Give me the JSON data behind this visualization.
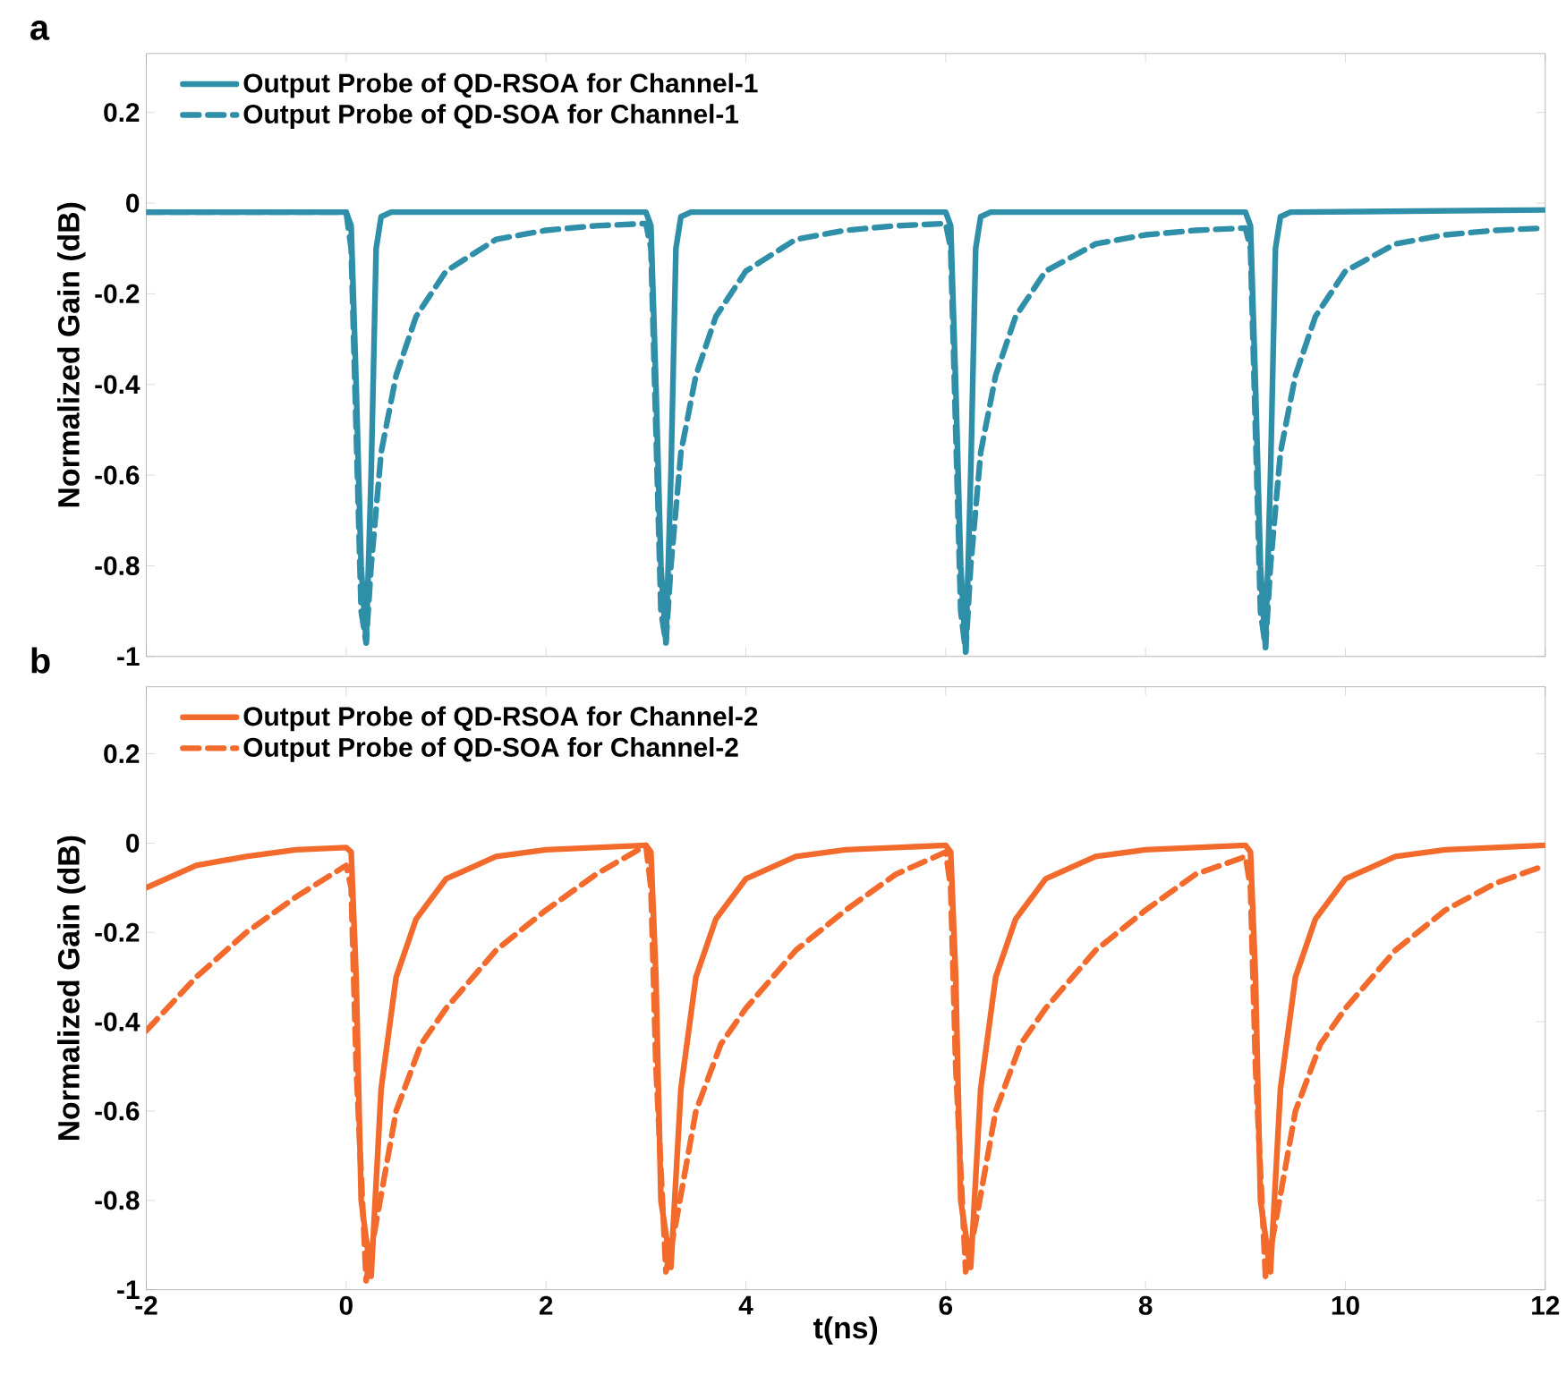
{
  "chart_data": [
    {
      "type": "line",
      "title": "a",
      "ylabel": "Normalized Gain (dB)",
      "xlim": [
        -2,
        12
      ],
      "ylim": [
        -1,
        0.33
      ],
      "xticks": [
        -2,
        0,
        2,
        4,
        6,
        8,
        10,
        12
      ],
      "yticks": [
        -1,
        -0.8,
        -0.6,
        -0.4,
        -0.2,
        0,
        0.2
      ],
      "tick_labels": "y",
      "legend": "top left",
      "series": [
        {
          "name": "Output Probe of QD-RSOA for Channel-1",
          "color": "#2f8fa9",
          "line_style": "solid",
          "x": [
            -2,
            0,
            0.05,
            0.1,
            0.15,
            0.2,
            0.25,
            0.3,
            0.35,
            0.45,
            3,
            3.05,
            3.1,
            3.15,
            3.2,
            3.25,
            3.3,
            3.35,
            3.45,
            6,
            6.05,
            6.1,
            6.15,
            6.2,
            6.25,
            6.3,
            6.35,
            6.45,
            9,
            9.05,
            9.1,
            9.15,
            9.2,
            9.25,
            9.3,
            9.35,
            9.45,
            12
          ],
          "values": [
            -0.02,
            -0.02,
            -0.05,
            -0.4,
            -0.8,
            -0.97,
            -0.6,
            -0.1,
            -0.03,
            -0.02,
            -0.02,
            -0.05,
            -0.4,
            -0.8,
            -0.97,
            -0.6,
            -0.1,
            -0.03,
            -0.02,
            -0.02,
            -0.05,
            -0.4,
            -0.8,
            -0.99,
            -0.6,
            -0.1,
            -0.03,
            -0.02,
            -0.02,
            -0.05,
            -0.4,
            -0.8,
            -0.98,
            -0.6,
            -0.1,
            -0.03,
            -0.02,
            -0.015
          ]
        },
        {
          "name": "Output Probe of QD-SOA for Channel-1",
          "color": "#2f8fa9",
          "line_style": "dashed",
          "x": [
            -2,
            0,
            0.05,
            0.1,
            0.15,
            0.2,
            0.25,
            0.35,
            0.5,
            0.7,
            1,
            1.5,
            2,
            2.5,
            3,
            3.05,
            3.1,
            3.15,
            3.2,
            3.25,
            3.35,
            3.5,
            3.7,
            4,
            4.5,
            5,
            5.5,
            6,
            6.05,
            6.1,
            6.15,
            6.2,
            6.25,
            6.35,
            6.5,
            6.7,
            7,
            7.5,
            8,
            8.5,
            9,
            9.05,
            9.1,
            9.15,
            9.2,
            9.25,
            9.35,
            9.5,
            9.7,
            10,
            10.5,
            11,
            11.5,
            12
          ],
          "values": [
            -0.02,
            -0.02,
            -0.1,
            -0.5,
            -0.9,
            -0.97,
            -0.8,
            -0.55,
            -0.38,
            -0.25,
            -0.15,
            -0.08,
            -0.06,
            -0.05,
            -0.045,
            -0.1,
            -0.5,
            -0.9,
            -0.97,
            -0.8,
            -0.55,
            -0.38,
            -0.25,
            -0.15,
            -0.08,
            -0.06,
            -0.05,
            -0.045,
            -0.1,
            -0.5,
            -0.9,
            -0.99,
            -0.8,
            -0.55,
            -0.38,
            -0.25,
            -0.15,
            -0.09,
            -0.07,
            -0.06,
            -0.055,
            -0.1,
            -0.5,
            -0.9,
            -0.98,
            -0.8,
            -0.55,
            -0.38,
            -0.25,
            -0.15,
            -0.09,
            -0.07,
            -0.06,
            -0.055
          ]
        }
      ]
    },
    {
      "type": "line",
      "title": "b",
      "xlabel": "t(ns)",
      "ylabel": "Normalized Gain (dB)",
      "xlim": [
        -2,
        12
      ],
      "ylim": [
        -1,
        0.35
      ],
      "xticks": [
        -2,
        0,
        2,
        4,
        6,
        8,
        10,
        12
      ],
      "yticks": [
        -1,
        -0.8,
        -0.6,
        -0.4,
        -0.2,
        0,
        0.2
      ],
      "legend": "top left",
      "series": [
        {
          "name": "Output Probe of QD-RSOA for Channel-2",
          "color": "#f26b2c",
          "line_style": "solid",
          "x": [
            -2,
            -1.5,
            -1,
            -0.5,
            0,
            0.05,
            0.1,
            0.15,
            0.25,
            0.35,
            0.5,
            0.7,
            1,
            1.5,
            2,
            3,
            3.05,
            3.1,
            3.15,
            3.25,
            3.35,
            3.5,
            3.7,
            4,
            4.5,
            5,
            6,
            6.05,
            6.1,
            6.15,
            6.25,
            6.35,
            6.5,
            6.7,
            7,
            7.5,
            8,
            9,
            9.05,
            9.1,
            9.15,
            9.25,
            9.35,
            9.5,
            9.7,
            10,
            10.5,
            11,
            12
          ],
          "values": [
            -0.1,
            -0.05,
            -0.03,
            -0.015,
            -0.01,
            -0.02,
            -0.3,
            -0.8,
            -0.97,
            -0.55,
            -0.3,
            -0.17,
            -0.08,
            -0.03,
            -0.015,
            -0.005,
            -0.02,
            -0.3,
            -0.8,
            -0.95,
            -0.55,
            -0.3,
            -0.17,
            -0.08,
            -0.03,
            -0.015,
            -0.005,
            -0.02,
            -0.3,
            -0.8,
            -0.95,
            -0.55,
            -0.3,
            -0.17,
            -0.08,
            -0.03,
            -0.015,
            -0.005,
            -0.02,
            -0.3,
            -0.8,
            -0.96,
            -0.55,
            -0.3,
            -0.17,
            -0.08,
            -0.03,
            -0.015,
            -0.005
          ]
        },
        {
          "name": "Output Probe of QD-SOA for Channel-2",
          "color": "#f26b2c",
          "line_style": "dashed",
          "x": [
            -2,
            -1.5,
            -1,
            -0.5,
            0,
            0.05,
            0.1,
            0.2,
            0.3,
            0.5,
            0.75,
            1,
            1.5,
            2,
            2.5,
            3,
            3.05,
            3.1,
            3.2,
            3.3,
            3.5,
            3.75,
            4,
            4.5,
            5,
            5.5,
            6,
            6.05,
            6.1,
            6.2,
            6.3,
            6.5,
            6.75,
            7,
            7.5,
            8,
            8.5,
            9,
            9.05,
            9.1,
            9.2,
            9.3,
            9.5,
            9.75,
            10,
            10.5,
            11,
            11.5,
            12
          ],
          "values": [
            -0.42,
            -0.3,
            -0.2,
            -0.12,
            -0.05,
            -0.1,
            -0.5,
            -0.98,
            -0.85,
            -0.6,
            -0.45,
            -0.37,
            -0.24,
            -0.15,
            -0.07,
            -0.005,
            -0.1,
            -0.5,
            -0.96,
            -0.85,
            -0.6,
            -0.45,
            -0.37,
            -0.24,
            -0.15,
            -0.07,
            -0.02,
            -0.1,
            -0.5,
            -0.96,
            -0.85,
            -0.6,
            -0.45,
            -0.37,
            -0.24,
            -0.15,
            -0.07,
            -0.03,
            -0.1,
            -0.5,
            -0.97,
            -0.85,
            -0.6,
            -0.45,
            -0.37,
            -0.24,
            -0.15,
            -0.09,
            -0.05
          ]
        }
      ]
    }
  ]
}
